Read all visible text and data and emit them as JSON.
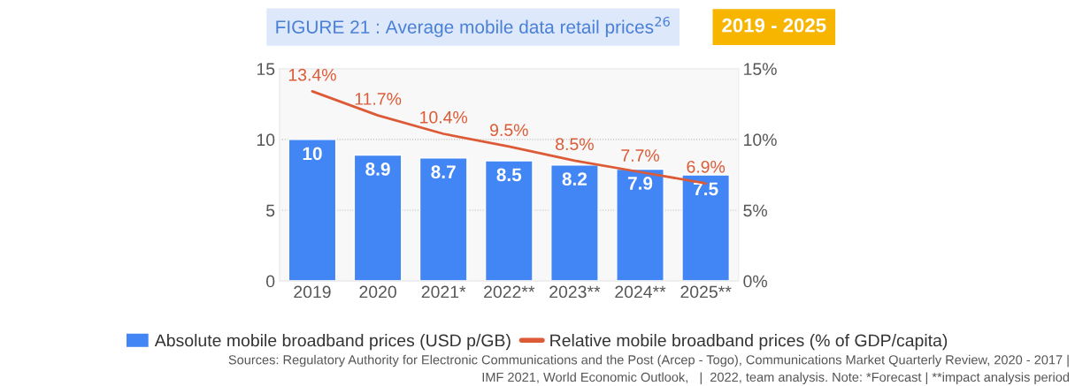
{
  "chart_data": {
    "type": "bar",
    "title": "FIGURE 21 : Average mobile data retail prices$^{26}$",
    "subtitle": "2019 - 2025",
    "categories": [
      "2019",
      "2020",
      "2021*",
      "2022**",
      "2023**",
      "2024**",
      "2025**"
    ],
    "series": [
      {
        "name": "Absolute mobile broadband prices (USD p/GB)",
        "color": "#4285f4",
        "values": [
          10,
          8.9,
          8.7,
          8.5,
          8.2,
          7.9,
          7.5
        ],
        "value_labels": [
          "10",
          "8.9",
          "8.7",
          "8.5",
          "8.2",
          "7.9",
          "7.5"
        ]
      },
      {
        "name": "Relative mobile broadband prices (% of GDP/capita)",
        "type": "line",
        "axis": "y2",
        "color": "#dd5a36",
        "values": [
          13.4,
          11.7,
          10.4,
          9.5,
          8.5,
          7.7,
          6.9
        ],
        "value_labels": [
          "13.4%",
          "11.7%",
          "10.4%",
          "9.5%",
          "8.5%",
          "7.7%",
          "6.9%"
        ]
      }
    ],
    "ylim": [
      0,
      15
    ],
    "yticks": [
      0,
      5,
      10,
      15
    ],
    "y2lim": [
      0,
      15
    ],
    "y2ticks": [
      {
        "value": 0,
        "label": "0%"
      },
      {
        "value": 5,
        "label": "5%"
      },
      {
        "value": 10,
        "label": "10%"
      },
      {
        "value": 15,
        "label": "15%"
      }
    ],
    "grid": "y",
    "legend": "bottom",
    "marker": "none",
    "line_style": "solid",
    "annotations": [
      "Sources: Regulatory Authority for Electronic Communications and the Post (Arcep - Togo), Communications Market Quarterly Review, 2020 - 2017 |",
      "IMF 2021, World Economic Outlook,   |  2022, team analysis. Note: *Forecast | **impact analysis period"
    ]
  }
}
